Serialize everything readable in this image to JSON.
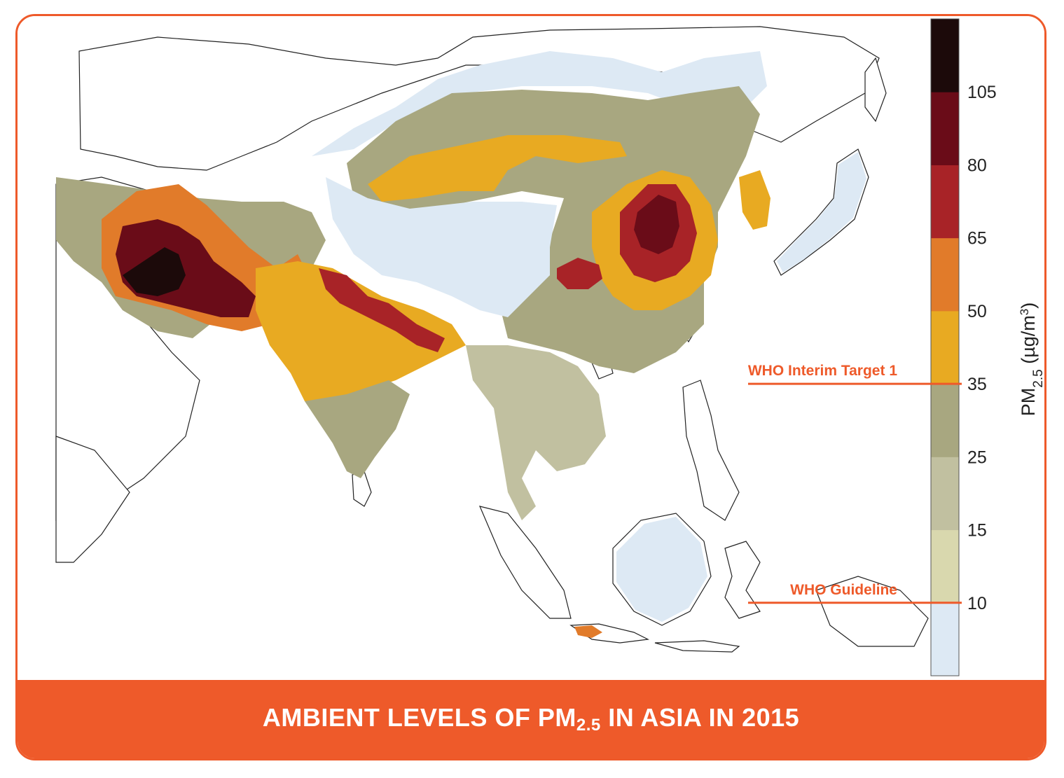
{
  "title": {
    "prefix": "AMBIENT LEVELS OF PM",
    "subscript": "2.5",
    "suffix": " IN ASIA IN 2015"
  },
  "colorbar": {
    "title_prefix": "PM",
    "title_subscript": "2.5",
    "title_unit": " (µg/m",
    "title_unit_sup": "3",
    "title_unit_close": ")",
    "scale_max": 125,
    "bins": [
      {
        "from": 0,
        "to": 10,
        "color": "#DDE9F4"
      },
      {
        "from": 10,
        "to": 15,
        "color": "#D9D8AE"
      },
      {
        "from": 15,
        "to": 25,
        "color": "#C1C0A0"
      },
      {
        "from": 25,
        "to": 35,
        "color": "#A8A780"
      },
      {
        "from": 35,
        "to": 50,
        "color": "#E8AA22"
      },
      {
        "from": 50,
        "to": 65,
        "color": "#E17B2A"
      },
      {
        "from": 65,
        "to": 80,
        "color": "#A82327"
      },
      {
        "from": 80,
        "to": 105,
        "color": "#6A0C18"
      },
      {
        "from": 105,
        "to": 125,
        "color": "#1C0A0A"
      }
    ],
    "tick_labels": [
      "10",
      "15",
      "25",
      "35",
      "50",
      "65",
      "80",
      "105"
    ]
  },
  "who_lines": [
    {
      "label": "WHO Interim Target 1",
      "value": 35
    },
    {
      "label": "WHO Guideline",
      "value": 10
    }
  ],
  "colors": {
    "accent": "#EE5A2A",
    "ocean": "#FFFFFF",
    "border": "#222222"
  },
  "map_regions": [
    {
      "name": "clean-north",
      "level": 5
    },
    {
      "name": "tibet-plateau",
      "level": 5
    },
    {
      "name": "mongolia-moderate",
      "level": 30
    },
    {
      "name": "gobi-desert-high",
      "level": 45
    },
    {
      "name": "middle-east-west",
      "level": 30
    },
    {
      "name": "iran-pakistan-high",
      "level": 58
    },
    {
      "name": "iran-pakistan-severe",
      "level": 90
    },
    {
      "name": "iran-pakistan-extreme",
      "level": 115
    },
    {
      "name": "india-north-high",
      "level": 45
    },
    {
      "name": "india-ganges-very-high",
      "level": 72
    },
    {
      "name": "india-south-moderate",
      "level": 30
    },
    {
      "name": "china-east-high",
      "level": 45
    },
    {
      "name": "china-north-very-high",
      "level": 72
    },
    {
      "name": "china-north-severe",
      "level": 90
    },
    {
      "name": "sichuan-basin",
      "level": 72
    },
    {
      "name": "southeast-asia-moderate",
      "level": 20
    },
    {
      "name": "maritime-southeast-asia-clean",
      "level": 5
    },
    {
      "name": "japan-clean",
      "level": 5
    },
    {
      "name": "korea-moderate",
      "level": 40
    },
    {
      "name": "java-hotspot",
      "level": 58
    }
  ]
}
